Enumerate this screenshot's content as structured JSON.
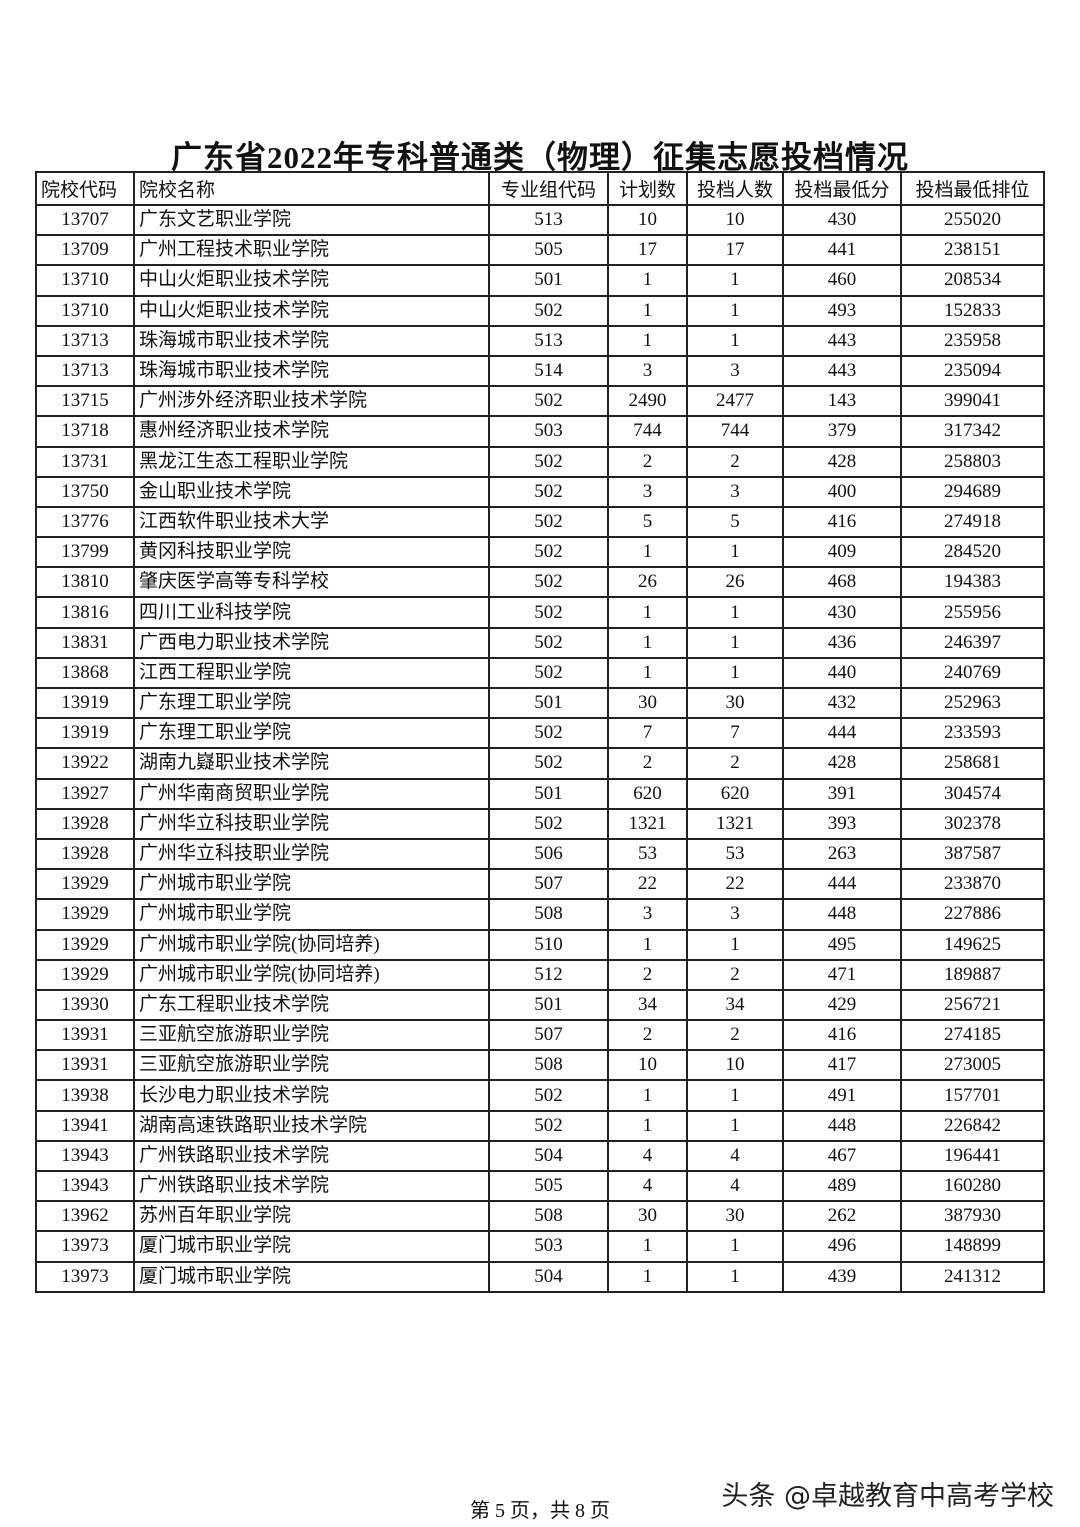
{
  "header": {
    "title": "广东省2022年专科普通类（物理）征集志愿投档情况"
  },
  "table": {
    "columns": [
      "院校代码",
      "院校名称",
      "专业组代码",
      "计划数",
      "投档人数",
      "投档最低分",
      "投档最低排位"
    ],
    "rows": [
      [
        "13707",
        "广东文艺职业学院",
        "513",
        "10",
        "10",
        "430",
        "255020"
      ],
      [
        "13709",
        "广州工程技术职业学院",
        "505",
        "17",
        "17",
        "441",
        "238151"
      ],
      [
        "13710",
        "中山火炬职业技术学院",
        "501",
        "1",
        "1",
        "460",
        "208534"
      ],
      [
        "13710",
        "中山火炬职业技术学院",
        "502",
        "1",
        "1",
        "493",
        "152833"
      ],
      [
        "13713",
        "珠海城市职业技术学院",
        "513",
        "1",
        "1",
        "443",
        "235958"
      ],
      [
        "13713",
        "珠海城市职业技术学院",
        "514",
        "3",
        "3",
        "443",
        "235094"
      ],
      [
        "13715",
        "广州涉外经济职业技术学院",
        "502",
        "2490",
        "2477",
        "143",
        "399041"
      ],
      [
        "13718",
        "惠州经济职业技术学院",
        "503",
        "744",
        "744",
        "379",
        "317342"
      ],
      [
        "13731",
        "黑龙江生态工程职业学院",
        "502",
        "2",
        "2",
        "428",
        "258803"
      ],
      [
        "13750",
        "金山职业技术学院",
        "502",
        "3",
        "3",
        "400",
        "294689"
      ],
      [
        "13776",
        "江西软件职业技术大学",
        "502",
        "5",
        "5",
        "416",
        "274918"
      ],
      [
        "13799",
        "黄冈科技职业学院",
        "502",
        "1",
        "1",
        "409",
        "284520"
      ],
      [
        "13810",
        "肇庆医学高等专科学校",
        "502",
        "26",
        "26",
        "468",
        "194383"
      ],
      [
        "13816",
        "四川工业科技学院",
        "502",
        "1",
        "1",
        "430",
        "255956"
      ],
      [
        "13831",
        "广西电力职业技术学院",
        "502",
        "1",
        "1",
        "436",
        "246397"
      ],
      [
        "13868",
        "江西工程职业学院",
        "502",
        "1",
        "1",
        "440",
        "240769"
      ],
      [
        "13919",
        "广东理工职业学院",
        "501",
        "30",
        "30",
        "432",
        "252963"
      ],
      [
        "13919",
        "广东理工职业学院",
        "502",
        "7",
        "7",
        "444",
        "233593"
      ],
      [
        "13922",
        "湖南九嶷职业技术学院",
        "502",
        "2",
        "2",
        "428",
        "258681"
      ],
      [
        "13927",
        "广州华南商贸职业学院",
        "501",
        "620",
        "620",
        "391",
        "304574"
      ],
      [
        "13928",
        "广州华立科技职业学院",
        "502",
        "1321",
        "1321",
        "393",
        "302378"
      ],
      [
        "13928",
        "广州华立科技职业学院",
        "506",
        "53",
        "53",
        "263",
        "387587"
      ],
      [
        "13929",
        "广州城市职业学院",
        "507",
        "22",
        "22",
        "444",
        "233870"
      ],
      [
        "13929",
        "广州城市职业学院",
        "508",
        "3",
        "3",
        "448",
        "227886"
      ],
      [
        "13929",
        "广州城市职业学院(协同培养)",
        "510",
        "1",
        "1",
        "495",
        "149625"
      ],
      [
        "13929",
        "广州城市职业学院(协同培养)",
        "512",
        "2",
        "2",
        "471",
        "189887"
      ],
      [
        "13930",
        "广东工程职业技术学院",
        "501",
        "34",
        "34",
        "429",
        "256721"
      ],
      [
        "13931",
        "三亚航空旅游职业学院",
        "507",
        "2",
        "2",
        "416",
        "274185"
      ],
      [
        "13931",
        "三亚航空旅游职业学院",
        "508",
        "10",
        "10",
        "417",
        "273005"
      ],
      [
        "13938",
        "长沙电力职业技术学院",
        "502",
        "1",
        "1",
        "491",
        "157701"
      ],
      [
        "13941",
        "湖南高速铁路职业技术学院",
        "502",
        "1",
        "1",
        "448",
        "226842"
      ],
      [
        "13943",
        "广州铁路职业技术学院",
        "504",
        "4",
        "4",
        "467",
        "196441"
      ],
      [
        "13943",
        "广州铁路职业技术学院",
        "505",
        "4",
        "4",
        "489",
        "160280"
      ],
      [
        "13962",
        "苏州百年职业学院",
        "508",
        "30",
        "30",
        "262",
        "387930"
      ],
      [
        "13973",
        "厦门城市职业学院",
        "503",
        "1",
        "1",
        "496",
        "148899"
      ],
      [
        "13973",
        "厦门城市职业学院",
        "504",
        "1",
        "1",
        "439",
        "241312"
      ]
    ]
  },
  "footer": {
    "page": "第 5 页，共 8 页",
    "watermark": "头条 @卓越教育中高考学校"
  }
}
